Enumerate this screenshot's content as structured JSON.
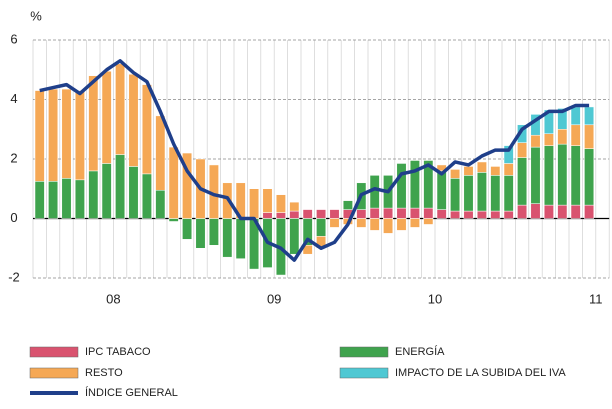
{
  "chart_data": {
    "type": "stacked-bar-line",
    "y_unit": "%",
    "categories": [
      null,
      null,
      null,
      null,
      null,
      null,
      "08",
      null,
      null,
      null,
      null,
      null,
      null,
      null,
      null,
      null,
      null,
      null,
      "09",
      null,
      null,
      null,
      null,
      null,
      null,
      null,
      null,
      null,
      null,
      null,
      "10",
      null,
      null,
      null,
      null,
      null,
      null,
      null,
      null,
      null,
      null,
      null,
      "11"
    ],
    "series": [
      {
        "name": "IPC TABACO",
        "color": "#d9536f",
        "kind": "bar",
        "values": [
          0,
          0,
          0,
          0,
          0,
          0,
          0,
          0,
          0,
          0,
          0,
          0,
          0,
          0,
          0,
          0,
          0,
          0.2,
          0.2,
          0.25,
          0.3,
          0.3,
          0.3,
          0.3,
          0.3,
          0.35,
          0.35,
          0.35,
          0.35,
          0.35,
          0.3,
          0.25,
          0.25,
          0.25,
          0.25,
          0.25,
          0.45,
          0.5,
          0.45,
          0.45,
          0.45,
          0.45,
          null
        ]
      },
      {
        "name": "ENERGÍA",
        "color": "#3fa34d",
        "kind": "bar",
        "values": [
          1.25,
          1.25,
          1.35,
          1.3,
          1.6,
          1.85,
          2.15,
          1.75,
          1.5,
          0.95,
          -0.1,
          -0.7,
          -1.0,
          -0.9,
          -1.3,
          -1.35,
          -1.7,
          -1.65,
          -1.9,
          -1.2,
          -0.9,
          -0.6,
          0.0,
          0.3,
          0.9,
          1.1,
          1.1,
          1.5,
          1.6,
          1.6,
          1.3,
          1.1,
          1.2,
          1.3,
          1.2,
          1.2,
          1.6,
          1.9,
          2.0,
          2.05,
          2.0,
          1.9,
          null
        ]
      },
      {
        "name": "RESTO",
        "color": "#f5a855",
        "kind": "bar",
        "values": [
          3.05,
          3.1,
          3.0,
          3.0,
          3.2,
          3.1,
          3.05,
          3.1,
          3.0,
          2.5,
          2.4,
          2.2,
          2.0,
          1.8,
          1.2,
          1.2,
          1.0,
          0.8,
          0.6,
          0.3,
          -0.3,
          -0.4,
          -0.3,
          -0.2,
          -0.3,
          -0.4,
          -0.5,
          -0.4,
          -0.3,
          -0.2,
          0.2,
          0.3,
          0.3,
          0.35,
          0.3,
          0.4,
          0.5,
          0.4,
          0.4,
          0.5,
          0.7,
          0.8,
          null
        ]
      },
      {
        "name": "IMPACTO DE LA SUBIDA DEL IVA",
        "color": "#4fc8d3",
        "kind": "bar",
        "values": [
          0,
          0,
          0,
          0,
          0,
          0,
          0,
          0,
          0,
          0,
          0,
          0,
          0,
          0,
          0,
          0,
          0,
          0,
          0,
          0,
          0,
          0,
          0,
          0,
          0,
          0,
          0,
          0,
          0,
          0,
          0,
          0,
          0,
          0,
          0,
          0.6,
          0.6,
          0.7,
          0.8,
          0.7,
          0.6,
          0.6,
          null
        ]
      },
      {
        "name": "ÍNDICE GENERAL",
        "color": "#1f3f8a",
        "kind": "line",
        "values": [
          4.3,
          4.4,
          4.5,
          4.2,
          4.6,
          5.0,
          5.3,
          4.9,
          4.6,
          3.6,
          2.5,
          1.6,
          1.0,
          0.8,
          0.7,
          0.0,
          0.0,
          -0.8,
          -1.0,
          -1.4,
          -0.7,
          -1.0,
          -0.8,
          -0.2,
          0.8,
          1.0,
          0.9,
          1.5,
          1.6,
          1.8,
          1.5,
          1.9,
          1.8,
          2.1,
          2.3,
          2.3,
          3.0,
          3.3,
          3.6,
          3.6,
          3.8,
          3.8,
          null
        ]
      }
    ],
    "ylim": [
      -2,
      6
    ],
    "yticks": [
      -2,
      0,
      2,
      4,
      6
    ],
    "grid": true
  }
}
